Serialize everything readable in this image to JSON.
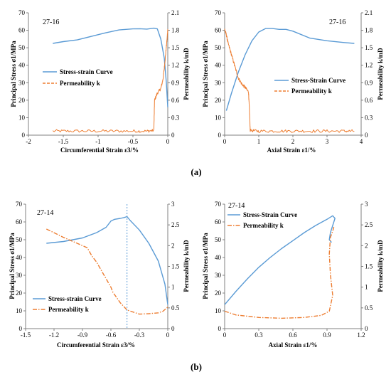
{
  "figure": {
    "subfig_labels": [
      "(a)",
      "(b)"
    ]
  },
  "colors": {
    "stress": "#5b9bd5",
    "permeability": "#ed7d31",
    "axis": "#808080"
  },
  "chart_data": [
    {
      "id": "a-left",
      "type": "line",
      "sample_label": "27-16",
      "xlabel": "Circumferential  Strain ε3/%",
      "ylabel_left": "Principal  Stress σ1/MPa",
      "ylabel_right": "Permeability  k/mD",
      "xlim": [
        -2,
        0
      ],
      "ylim_left": [
        0,
        70
      ],
      "ylim_right": [
        0,
        2.1
      ],
      "x_ticks": [
        "-2",
        "-1.5",
        "-1",
        "-0.5",
        "0"
      ],
      "y_ticks_left": [
        "0",
        "10",
        "20",
        "30",
        "40",
        "50",
        "60",
        "70"
      ],
      "y_ticks_right": [
        "0",
        "0.3",
        "0.6",
        "0.9",
        "1.2",
        "1.5",
        "1.8",
        "2.1"
      ],
      "legend_position": "center-left",
      "series": [
        {
          "name": "Stress-strain Curve",
          "axis": "left",
          "style": "solid",
          "x": [
            -1.65,
            -1.5,
            -1.3,
            -1.1,
            -0.9,
            -0.7,
            -0.5,
            -0.4,
            -0.3,
            -0.2,
            -0.15,
            -0.1,
            -0.05,
            -0.02,
            0
          ],
          "y": [
            52.5,
            53.5,
            54.5,
            56.5,
            58.5,
            60.2,
            60.8,
            60.9,
            60.7,
            61.2,
            60.8,
            55.0,
            44.0,
            30.0,
            16.0
          ]
        },
        {
          "name": "Permeability k",
          "axis": "right",
          "style": "noisy",
          "x": [
            -1.65,
            -1.4,
            -1.1,
            -0.8,
            -0.5,
            -0.3,
            -0.2,
            -0.19,
            -0.15,
            -0.1,
            -0.07,
            -0.05,
            -0.03,
            -0.01,
            0
          ],
          "y": [
            0.07,
            0.07,
            0.07,
            0.07,
            0.07,
            0.07,
            0.08,
            0.6,
            0.72,
            0.8,
            0.95,
            1.15,
            1.4,
            1.65,
            1.82
          ]
        }
      ]
    },
    {
      "id": "a-right",
      "type": "line",
      "sample_label": "27-16",
      "xlabel": "Axial Strain  ε1/%",
      "ylabel_left": "Principal  Stress σ1/MPa",
      "ylabel_right": "Permeability  k/mD",
      "xlim": [
        0,
        4
      ],
      "ylim_left": [
        0,
        70
      ],
      "ylim_right": [
        0,
        2.1
      ],
      "x_ticks": [
        "0",
        "1",
        "2",
        "3",
        "4"
      ],
      "y_ticks_left": [
        "0",
        "10",
        "20",
        "30",
        "40",
        "50",
        "60",
        "70"
      ],
      "y_ticks_right": [
        "0",
        "0.3",
        "0.6",
        "0.9",
        "1.2",
        "1.5",
        "1.8",
        "2.1"
      ],
      "legend_position": "center-right",
      "series": [
        {
          "name": "Stress-Strain Curve",
          "axis": "left",
          "style": "solid",
          "x": [
            0.05,
            0.2,
            0.4,
            0.6,
            0.8,
            1.0,
            1.2,
            1.4,
            1.6,
            1.8,
            2.0,
            2.5,
            3.0,
            3.5,
            3.8
          ],
          "y": [
            14.0,
            24.0,
            36.0,
            46.0,
            54.0,
            59.0,
            61.0,
            61.0,
            60.5,
            60.5,
            59.5,
            55.5,
            54.0,
            53.0,
            52.5
          ]
        },
        {
          "name": "Permeability k",
          "axis": "right",
          "style": "noisy",
          "x": [
            0.0,
            0.05,
            0.1,
            0.2,
            0.3,
            0.4,
            0.5,
            0.6,
            0.7,
            0.72,
            0.75,
            1.0,
            1.5,
            2.0,
            2.5,
            3.0,
            3.5,
            3.8
          ],
          "y": [
            1.82,
            1.72,
            1.58,
            1.38,
            1.18,
            0.98,
            0.88,
            0.82,
            0.74,
            0.5,
            0.08,
            0.07,
            0.07,
            0.07,
            0.07,
            0.07,
            0.07,
            0.07
          ]
        }
      ]
    },
    {
      "id": "b-left",
      "type": "line",
      "sample_label": "27-14",
      "xlabel": "Circumferential  Strain ε3/%",
      "ylabel_left": "Principal  Stress σ1/MPa",
      "ylabel_right": "Permeability  k/mD",
      "xlim": [
        -1.5,
        0
      ],
      "ylim_left": [
        0,
        70
      ],
      "ylim_right": [
        0,
        3
      ],
      "x_ticks": [
        "-1.5",
        "-1.2",
        "-0.9",
        "-0.6",
        "-0.3",
        "0"
      ],
      "y_ticks_left": [
        "0",
        "10",
        "20",
        "30",
        "40",
        "50",
        "60",
        "70"
      ],
      "y_ticks_right": [
        "0",
        "0.5",
        "1",
        "1.5",
        "2",
        "2.5",
        "3"
      ],
      "legend_position": "bottom-left",
      "reference_line_x": -0.43,
      "series": [
        {
          "name": "Stress-strain Curve",
          "axis": "left",
          "style": "solid",
          "x": [
            -1.28,
            -1.1,
            -0.9,
            -0.75,
            -0.65,
            -0.6,
            -0.56,
            -0.5,
            -0.46,
            -0.43,
            -0.4,
            -0.3,
            -0.2,
            -0.1,
            -0.03,
            0
          ],
          "y": [
            48.0,
            49.0,
            51.0,
            54.0,
            57.0,
            60.5,
            61.5,
            62.0,
            62.5,
            63.0,
            61.0,
            55.5,
            48.0,
            38.0,
            25.0,
            13.5
          ]
        },
        {
          "name": "Permeability k",
          "axis": "right",
          "style": "dashdot",
          "x": [
            -1.28,
            -1.1,
            -0.95,
            -0.85,
            -0.8,
            -0.75,
            -0.65,
            -0.6,
            -0.58,
            -0.5,
            -0.43,
            -0.3,
            -0.2,
            -0.1,
            -0.05,
            0
          ],
          "y": [
            2.4,
            2.2,
            2.05,
            1.95,
            1.75,
            1.6,
            1.2,
            1.0,
            0.88,
            0.62,
            0.45,
            0.35,
            0.36,
            0.38,
            0.42,
            0.52
          ]
        }
      ]
    },
    {
      "id": "b-right",
      "type": "line",
      "sample_label": "27-14",
      "xlabel": "Axial Strain  ε1/%",
      "ylabel_left": "Principal  Stress σ1/MPa",
      "ylabel_right": "Permeability  k/mD",
      "xlim": [
        0,
        1.2
      ],
      "ylim_left": [
        0,
        70
      ],
      "ylim_right": [
        0,
        3
      ],
      "x_ticks": [
        "0",
        "0.3",
        "0.6",
        "0.9",
        "1.2"
      ],
      "y_ticks_left": [
        "0",
        "10",
        "20",
        "30",
        "40",
        "50",
        "60",
        "70"
      ],
      "y_ticks_right": [
        "0",
        "0.5",
        "1",
        "1.5",
        "2",
        "2.5",
        "3"
      ],
      "legend_position": "top-left",
      "series": [
        {
          "name": "Stress-Strain Curve",
          "axis": "left",
          "style": "solid",
          "x": [
            0.0,
            0.1,
            0.2,
            0.3,
            0.4,
            0.5,
            0.6,
            0.7,
            0.8,
            0.9,
            0.95,
            0.97,
            0.95,
            0.93,
            0.92,
            0.94
          ],
          "y": [
            13.5,
            21.0,
            28.0,
            34.5,
            40.0,
            45.0,
            49.5,
            54.0,
            58.0,
            61.5,
            63.5,
            62.0,
            58.0,
            54.0,
            50.0,
            48.5
          ]
        },
        {
          "name": "Permeability k",
          "axis": "right",
          "style": "dashdot",
          "x": [
            0.0,
            0.1,
            0.3,
            0.5,
            0.7,
            0.85,
            0.92,
            0.95,
            0.93,
            0.92,
            0.93,
            0.95,
            0.96
          ],
          "y": [
            0.42,
            0.33,
            0.27,
            0.25,
            0.27,
            0.32,
            0.42,
            0.8,
            1.3,
            1.8,
            2.2,
            2.35,
            2.45
          ]
        }
      ]
    }
  ]
}
